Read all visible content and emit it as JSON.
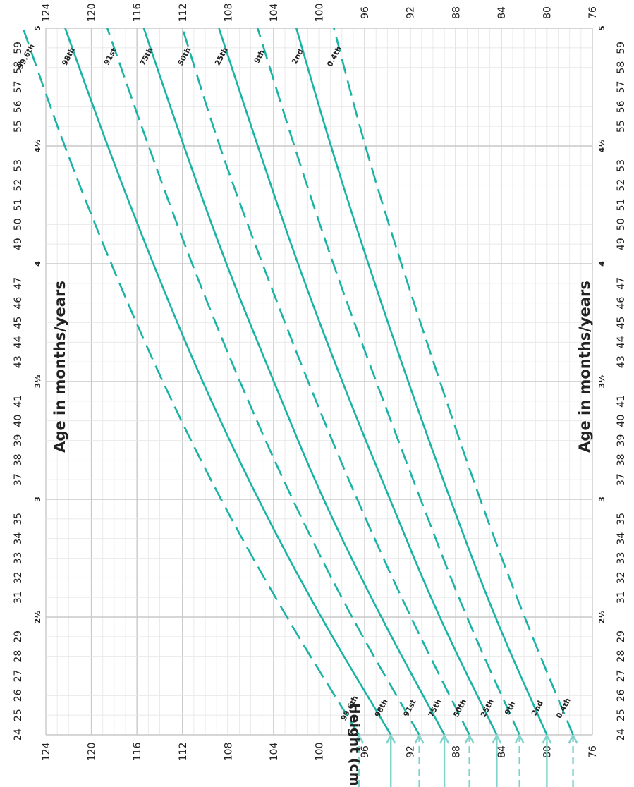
{
  "chart_data": {
    "type": "line",
    "xlabel": "Age in months/years",
    "ylabel": "Height (cm)",
    "xlim": [
      24,
      60
    ],
    "ylim": [
      76,
      124
    ],
    "x_ticks": [
      24,
      25,
      26,
      27,
      28,
      29,
      31,
      32,
      33,
      34,
      35,
      37,
      38,
      39,
      40,
      41,
      43,
      44,
      45,
      46,
      47,
      49,
      50,
      51,
      52,
      53,
      55,
      56,
      57,
      58,
      59
    ],
    "x_year_ticks": [
      {
        "x": 24,
        "label": ""
      },
      {
        "x": 30,
        "label": "2½"
      },
      {
        "x": 36,
        "label": "3"
      },
      {
        "x": 42,
        "label": "3½"
      },
      {
        "x": 48,
        "label": "4"
      },
      {
        "x": 54,
        "label": "4½"
      },
      {
        "x": 60,
        "label": "5"
      }
    ],
    "y_ticks": [
      76,
      80,
      84,
      88,
      92,
      96,
      100,
      104,
      108,
      112,
      116,
      120,
      124
    ],
    "grid": true,
    "line_color": "#1ab3a6",
    "arrow_color": "#7fd3cb",
    "x": [
      24,
      30,
      36,
      42,
      48,
      54,
      60
    ],
    "series": [
      {
        "name": "99.6th",
        "dashed": true,
        "start_label": "99.6th",
        "values": [
          96.5,
          102.9,
          108.7,
          113.8,
          118.3,
          122.4,
          126.0
        ]
      },
      {
        "name": "98th",
        "dashed": false,
        "start_label": "98th",
        "values": [
          93.7,
          99.9,
          105.4,
          110.3,
          114.6,
          118.6,
          122.3
        ]
      },
      {
        "name": "91st",
        "dashed": true,
        "start_label": "91st",
        "values": [
          91.2,
          97.2,
          102.4,
          107.0,
          111.2,
          115.0,
          118.6
        ]
      },
      {
        "name": "75th",
        "dashed": false,
        "start_label": "75th",
        "values": [
          89.0,
          94.6,
          99.7,
          104.0,
          108.2,
          111.9,
          115.4
        ]
      },
      {
        "name": "50th",
        "dashed": true,
        "start_label": "50th",
        "values": [
          86.8,
          92.0,
          96.7,
          101.0,
          105.0,
          108.8,
          112.0
        ]
      },
      {
        "name": "25th",
        "dashed": false,
        "start_label": "25th",
        "values": [
          84.4,
          89.5,
          93.8,
          98.0,
          101.9,
          105.4,
          108.8
        ]
      },
      {
        "name": "9th",
        "dashed": true,
        "start_label": "9th",
        "values": [
          82.4,
          87.1,
          91.1,
          95.0,
          98.8,
          102.2,
          105.4
        ]
      },
      {
        "name": "2nd",
        "dashed": false,
        "start_label": "2nd",
        "values": [
          80.0,
          84.6,
          88.5,
          92.2,
          95.7,
          99.0,
          102.0
        ]
      },
      {
        "name": "0.4th",
        "dashed": true,
        "start_label": "0.4th",
        "values": [
          77.7,
          82.0,
          85.9,
          89.4,
          92.8,
          96.0,
          98.7
        ]
      }
    ],
    "arrow_targets": [
      96.5,
      93.7,
      91.2,
      89.0,
      86.8,
      84.4,
      82.4,
      80.0,
      77.7
    ]
  }
}
